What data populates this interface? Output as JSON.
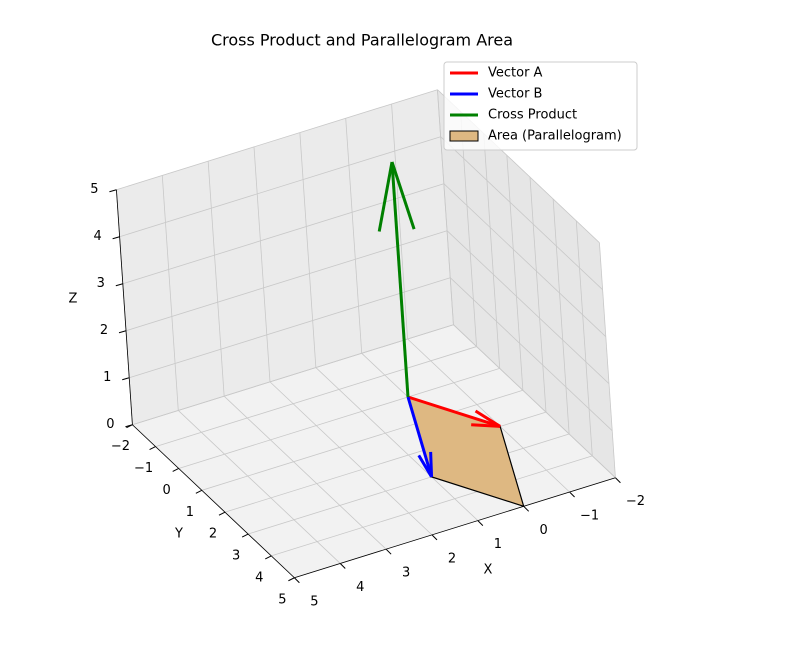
{
  "chart_data": {
    "type": "quiver3d",
    "title": "Cross Product and Parallelogram Area",
    "xlabel": "X",
    "ylabel": "Y",
    "zlabel": "Z",
    "xlim": [
      -2,
      5
    ],
    "ylim": [
      -2,
      5
    ],
    "zlim": [
      0,
      5
    ],
    "xticks": [
      {
        "value": -2,
        "label": "−2"
      },
      {
        "value": -1,
        "label": "−1"
      },
      0,
      1,
      2,
      3,
      4,
      5
    ],
    "yticks": [
      {
        "value": -2,
        "label": "−2"
      },
      {
        "value": -1,
        "label": "−1"
      },
      0,
      1,
      2,
      3,
      4,
      5
    ],
    "zticks": [
      0,
      1,
      2,
      3,
      4,
      5
    ],
    "grid": true,
    "legend": "upper right",
    "series": [
      {
        "name": "Vector A",
        "color": "#ff0000",
        "values": [
          -1,
          2,
          0
        ]
      },
      {
        "name": "Vector B",
        "color": "#0000ff",
        "values": [
          1,
          3,
          0
        ]
      },
      {
        "name": "Cross Product",
        "color": "#008000",
        "values": [
          0,
          0,
          5
        ]
      }
    ],
    "area": {
      "name": "Area (Parallelogram)",
      "color": "#deb882",
      "edge_color": "#000000"
    }
  }
}
